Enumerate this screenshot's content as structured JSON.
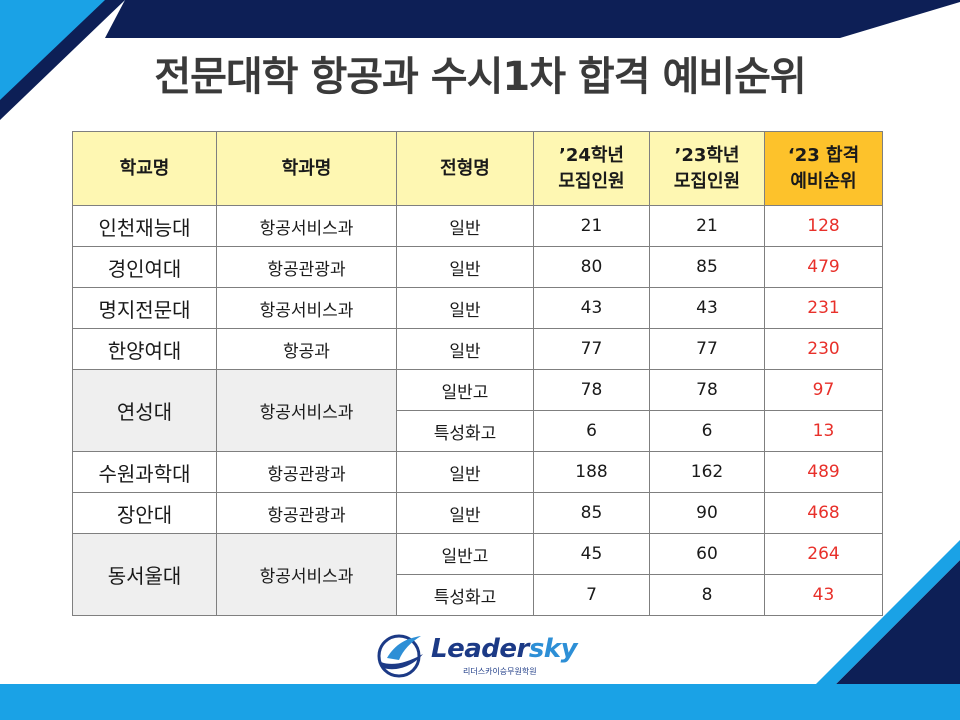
{
  "title": "전문대학 항공과 수시1차 합격 예비순위",
  "table": {
    "headers": {
      "school": "학교명",
      "dept": "학과명",
      "type": "전형명",
      "y24_line1": "’24학년",
      "y24_line2": "모집인원",
      "y23_line1": "’23학년",
      "y23_line2": "모집인원",
      "rank_line1": "‘23 합격",
      "rank_line2": "예비순위"
    },
    "rows": [
      {
        "school": "인천재능대",
        "dept": "항공서비스과",
        "type": "일반",
        "y24": "21",
        "y23": "21",
        "rank": "128"
      },
      {
        "school": "경인여대",
        "dept": "항공관광과",
        "type": "일반",
        "y24": "80",
        "y23": "85",
        "rank": "479"
      },
      {
        "school": "명지전문대",
        "dept": "항공서비스과",
        "type": "일반",
        "y24": "43",
        "y23": "43",
        "rank": "231"
      },
      {
        "school": "한양여대",
        "dept": "항공과",
        "type": "일반",
        "y24": "77",
        "y23": "77",
        "rank": "230"
      },
      {
        "school": "연성대",
        "dept": "항공서비스과",
        "type": "일반고",
        "y24": "78",
        "y23": "78",
        "rank": "97"
      },
      {
        "school": "연성대",
        "dept": "항공서비스과",
        "type": "특성화고",
        "y24": "6",
        "y23": "6",
        "rank": "13"
      },
      {
        "school": "수원과학대",
        "dept": "항공관광과",
        "type": "일반",
        "y24": "188",
        "y23": "162",
        "rank": "489"
      },
      {
        "school": "장안대",
        "dept": "항공관광과",
        "type": "일반",
        "y24": "85",
        "y23": "90",
        "rank": "468"
      },
      {
        "school": "동서울대",
        "dept": "항공서비스과",
        "type": "일반고",
        "y24": "45",
        "y23": "60",
        "rank": "264"
      },
      {
        "school": "동서울대",
        "dept": "항공서비스과",
        "type": "특성화고",
        "y24": "7",
        "y23": "8",
        "rank": "43"
      }
    ]
  },
  "logo": {
    "name_part1": "Leader",
    "name_part2": "sky",
    "subtitle": "리더스카이승무원학원"
  },
  "colors": {
    "header_bg": "#fef7b2",
    "rank_header_bg": "#fdc22b",
    "rank_text": "#e8302a",
    "accent_navy": "#0d1f56",
    "accent_blue": "#1aa2e6"
  }
}
